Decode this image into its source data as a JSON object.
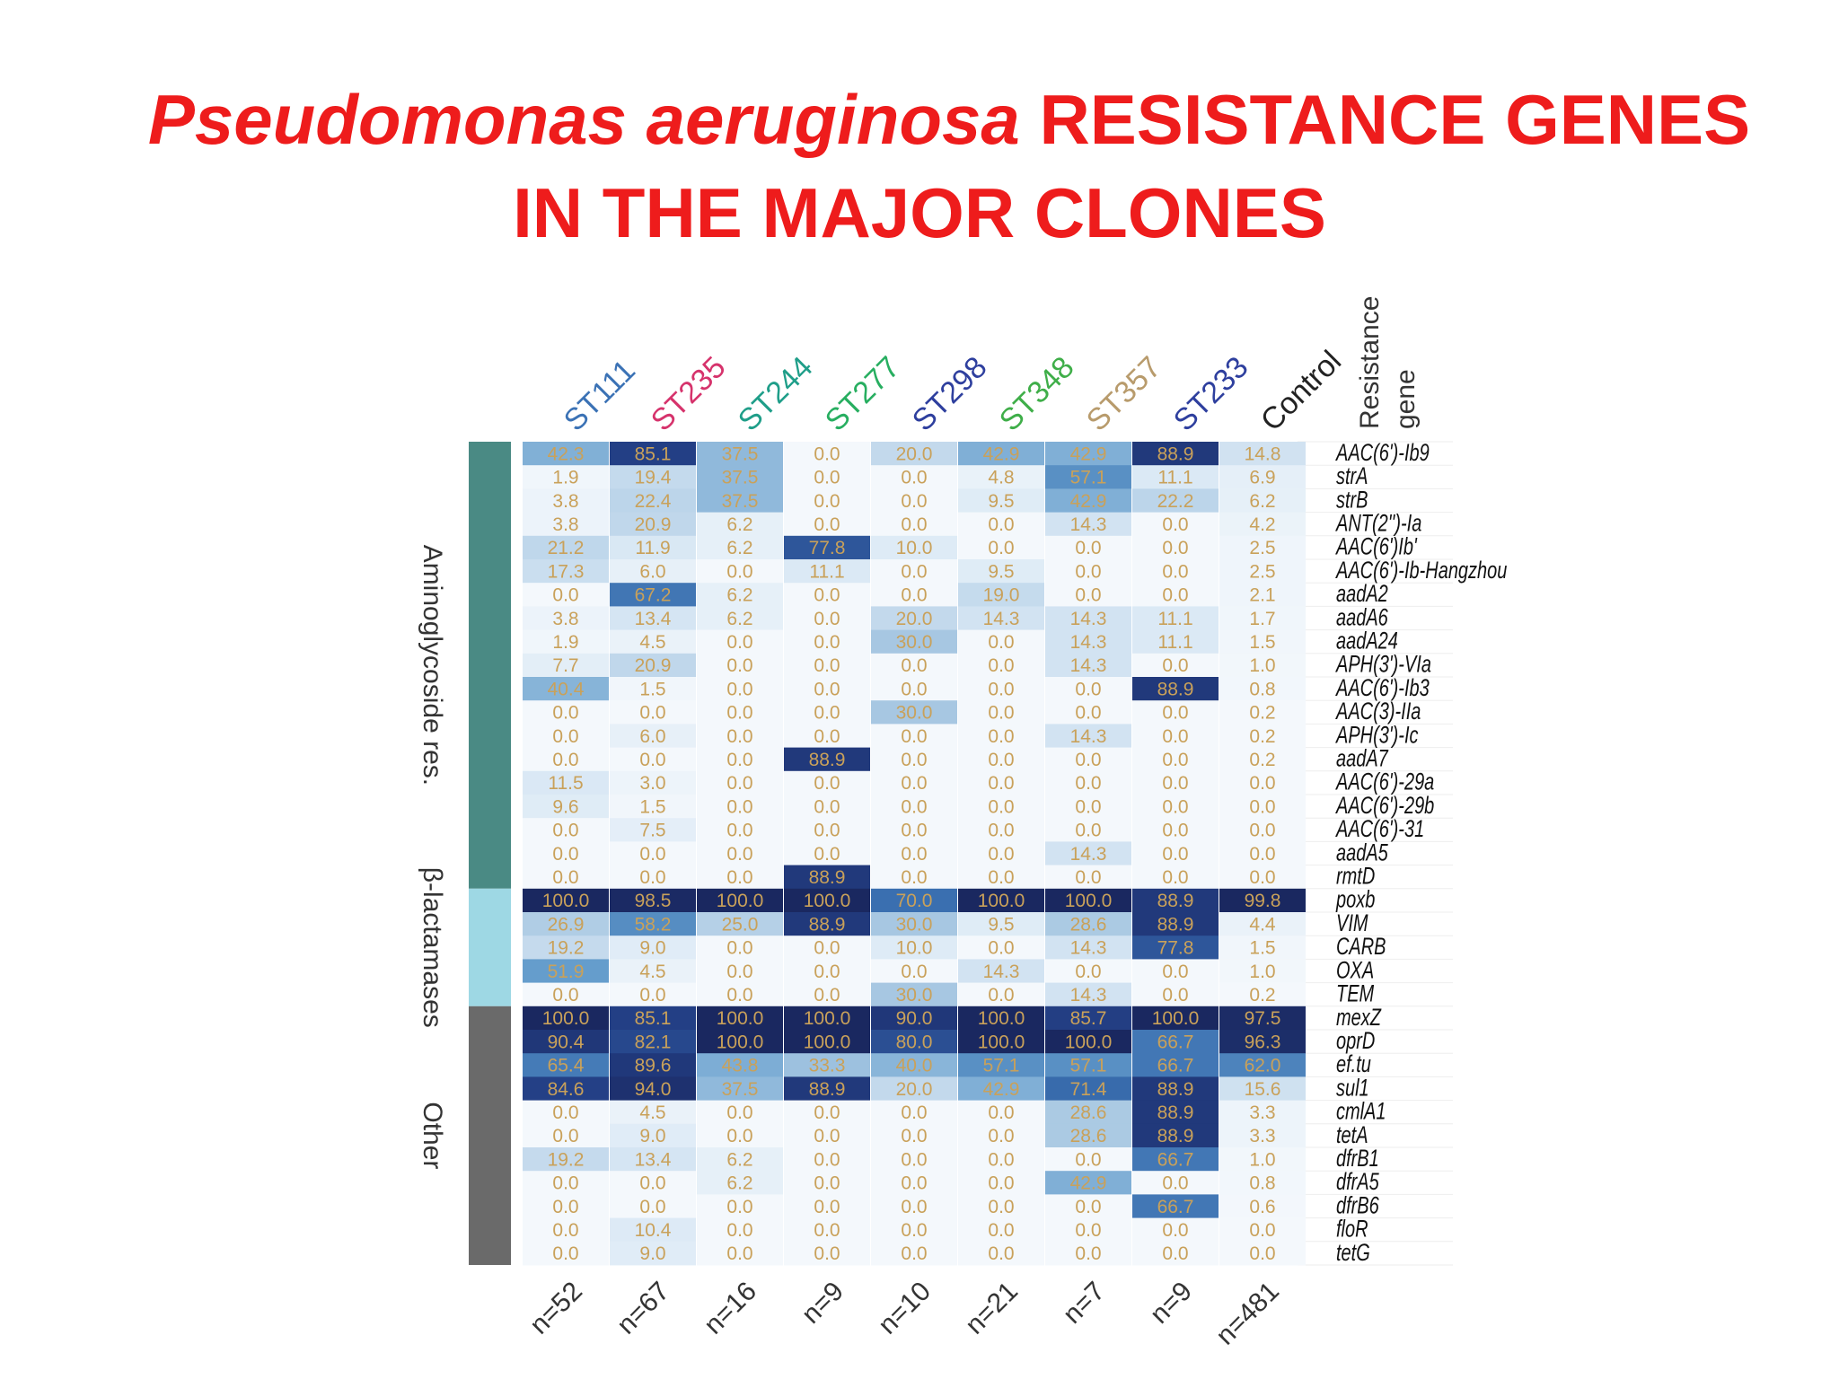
{
  "title": {
    "italic": "Pseudomonas aeruginosa",
    "line1_rest": " RESISTANCE GENES",
    "line2": "IN THE MAJOR CLONES"
  },
  "chart_data": {
    "type": "heatmap",
    "resistance_header": [
      "Resistance",
      "gene"
    ],
    "columns": [
      {
        "label": "ST111",
        "n": "n=52",
        "color": "#3b72b5"
      },
      {
        "label": "ST235",
        "n": "n=67",
        "color": "#d6336c"
      },
      {
        "label": "ST244",
        "n": "n=16",
        "color": "#1f9e89"
      },
      {
        "label": "ST277",
        "n": "n=9",
        "color": "#27ae60"
      },
      {
        "label": "ST298",
        "n": "n=10",
        "color": "#2e3f9e"
      },
      {
        "label": "ST348",
        "n": "n=21",
        "color": "#3fae49"
      },
      {
        "label": "ST357",
        "n": "n=7",
        "color": "#b89b6c"
      },
      {
        "label": "ST233",
        "n": "n=9",
        "color": "#2e3f9e"
      },
      {
        "label": "Control",
        "n": "n=481",
        "color": "#222222"
      }
    ],
    "groups": [
      {
        "label": "Aminoglycoside res.",
        "start": 0,
        "end": 18,
        "color": "#4a8a84"
      },
      {
        "label": "β-lactamases",
        "start": 19,
        "end": 23,
        "color": "#9ed8e4"
      },
      {
        "label": "Other",
        "start": 24,
        "end": 34,
        "color": "#6a6a6a"
      }
    ],
    "genes": [
      "AAC(6')-Ib9",
      "strA",
      "strB",
      "ANT(2'')-Ia",
      "AAC(6')Ib'",
      "AAC(6')-Ib-Hangzhou",
      "aadA2",
      "aadA6",
      "aadA24",
      "APH(3')-VIa",
      "AAC(6')-Ib3",
      "AAC(3)-IIa",
      "APH(3')-Ic",
      "aadA7",
      "AAC(6')-29a",
      "AAC(6')-29b",
      "AAC(6')-31",
      "aadA5",
      "rmtD",
      "poxb",
      "VIM",
      "CARB",
      "OXA",
      "TEM",
      "mexZ",
      "oprD",
      "ef.tu",
      "sul1",
      "cmlA1",
      "tetA",
      "dfrB1",
      "dfrA5",
      "dfrB6",
      "floR",
      "tetG"
    ],
    "values": [
      [
        "42.3",
        "85.1",
        "37.5",
        "0.0",
        "20.0",
        "42.9",
        "42.9",
        "88.9",
        "14.8"
      ],
      [
        "1.9",
        "19.4",
        "37.5",
        "0.0",
        "0.0",
        "4.8",
        "57.1",
        "11.1",
        "6.9"
      ],
      [
        "3.8",
        "22.4",
        "37.5",
        "0.0",
        "0.0",
        "9.5",
        "42.9",
        "22.2",
        "6.2"
      ],
      [
        "3.8",
        "20.9",
        "6.2",
        "0.0",
        "0.0",
        "0.0",
        "14.3",
        "0.0",
        "4.2"
      ],
      [
        "21.2",
        "11.9",
        "6.2",
        "77.8",
        "10.0",
        "0.0",
        "0.0",
        "0.0",
        "2.5"
      ],
      [
        "17.3",
        "6.0",
        "0.0",
        "11.1",
        "0.0",
        "9.5",
        "0.0",
        "0.0",
        "2.5"
      ],
      [
        "0.0",
        "67.2",
        "6.2",
        "0.0",
        "0.0",
        "19.0",
        "0.0",
        "0.0",
        "2.1"
      ],
      [
        "3.8",
        "13.4",
        "6.2",
        "0.0",
        "20.0",
        "14.3",
        "14.3",
        "11.1",
        "1.7"
      ],
      [
        "1.9",
        "4.5",
        "0.0",
        "0.0",
        "30.0",
        "0.0",
        "14.3",
        "11.1",
        "1.5"
      ],
      [
        "7.7",
        "20.9",
        "0.0",
        "0.0",
        "0.0",
        "0.0",
        "14.3",
        "0.0",
        "1.0"
      ],
      [
        "40.4",
        "1.5",
        "0.0",
        "0.0",
        "0.0",
        "0.0",
        "0.0",
        "88.9",
        "0.8"
      ],
      [
        "0.0",
        "0.0",
        "0.0",
        "0.0",
        "30.0",
        "0.0",
        "0.0",
        "0.0",
        "0.2"
      ],
      [
        "0.0",
        "6.0",
        "0.0",
        "0.0",
        "0.0",
        "0.0",
        "14.3",
        "0.0",
        "0.2"
      ],
      [
        "0.0",
        "0.0",
        "0.0",
        "88.9",
        "0.0",
        "0.0",
        "0.0",
        "0.0",
        "0.2"
      ],
      [
        "11.5",
        "3.0",
        "0.0",
        "0.0",
        "0.0",
        "0.0",
        "0.0",
        "0.0",
        "0.0"
      ],
      [
        "9.6",
        "1.5",
        "0.0",
        "0.0",
        "0.0",
        "0.0",
        "0.0",
        "0.0",
        "0.0"
      ],
      [
        "0.0",
        "7.5",
        "0.0",
        "0.0",
        "0.0",
        "0.0",
        "0.0",
        "0.0",
        "0.0"
      ],
      [
        "0.0",
        "0.0",
        "0.0",
        "0.0",
        "0.0",
        "0.0",
        "14.3",
        "0.0",
        "0.0"
      ],
      [
        "0.0",
        "0.0",
        "0.0",
        "88.9",
        "0.0",
        "0.0",
        "0.0",
        "0.0",
        "0.0"
      ],
      [
        "100.0",
        "98.5",
        "100.0",
        "100.0",
        "70.0",
        "100.0",
        "100.0",
        "88.9",
        "99.8"
      ],
      [
        "26.9",
        "58.2",
        "25.0",
        "88.9",
        "30.0",
        "9.5",
        "28.6",
        "88.9",
        "4.4"
      ],
      [
        "19.2",
        "9.0",
        "0.0",
        "0.0",
        "10.0",
        "0.0",
        "14.3",
        "77.8",
        "1.5"
      ],
      [
        "51.9",
        "4.5",
        "0.0",
        "0.0",
        "0.0",
        "14.3",
        "0.0",
        "0.0",
        "1.0"
      ],
      [
        "0.0",
        "0.0",
        "0.0",
        "0.0",
        "30.0",
        "0.0",
        "14.3",
        "0.0",
        "0.2"
      ],
      [
        "100.0",
        "85.1",
        "100.0",
        "100.0",
        "90.0",
        "100.0",
        "85.7",
        "100.0",
        "97.5"
      ],
      [
        "90.4",
        "82.1",
        "100.0",
        "100.0",
        "80.0",
        "100.0",
        "100.0",
        "66.7",
        "96.3"
      ],
      [
        "65.4",
        "89.6",
        "43.8",
        "33.3",
        "40.0",
        "57.1",
        "57.1",
        "66.7",
        "62.0"
      ],
      [
        "84.6",
        "94.0",
        "37.5",
        "88.9",
        "20.0",
        "42.9",
        "71.4",
        "88.9",
        "15.6"
      ],
      [
        "0.0",
        "4.5",
        "0.0",
        "0.0",
        "0.0",
        "0.0",
        "28.6",
        "88.9",
        "3.3"
      ],
      [
        "0.0",
        "9.0",
        "0.0",
        "0.0",
        "0.0",
        "0.0",
        "28.6",
        "88.9",
        "3.3"
      ],
      [
        "19.2",
        "13.4",
        "6.2",
        "0.0",
        "0.0",
        "0.0",
        "0.0",
        "66.7",
        "1.0"
      ],
      [
        "0.0",
        "0.0",
        "6.2",
        "0.0",
        "0.0",
        "0.0",
        "42.9",
        "0.0",
        "0.8"
      ],
      [
        "0.0",
        "0.0",
        "0.0",
        "0.0",
        "0.0",
        "0.0",
        "0.0",
        "66.7",
        "0.6"
      ],
      [
        "0.0",
        "10.4",
        "0.0",
        "0.0",
        "0.0",
        "0.0",
        "0.0",
        "0.0",
        "0.0"
      ],
      [
        "0.0",
        "9.0",
        "0.0",
        "0.0",
        "0.0",
        "0.0",
        "0.0",
        "0.0",
        "0.0"
      ]
    ],
    "value_text_color": "#c9a15a",
    "scale": {
      "min": 0,
      "max": 100,
      "low_color": "#f4f8fc",
      "high_color": "#1a2860"
    }
  }
}
